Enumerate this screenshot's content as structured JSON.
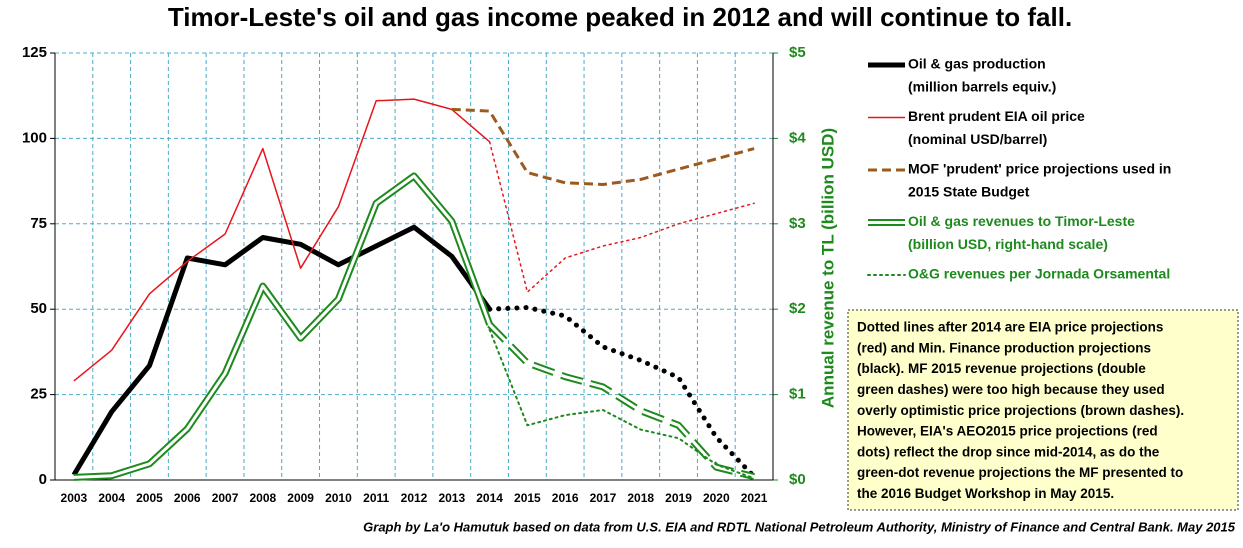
{
  "chart_data": {
    "type": "line",
    "title": "Timor-Leste's oil and gas income peaked in 2012 and will continue to fall.",
    "y2_label": "Annual revenue to TL (billion USD)",
    "source": "Graph by La'o Hamutuk based on data from U.S. EIA and RDTL National Petroleum Authority, Ministry of Finance and Central Bank.  May 2015",
    "categories": [
      "2003",
      "2004",
      "2005",
      "2006",
      "2007",
      "2008",
      "2009",
      "2010",
      "2011",
      "2012",
      "2013",
      "2014",
      "2015",
      "2016",
      "2017",
      "2018",
      "2019",
      "2020",
      "2021"
    ],
    "ylim": [
      0,
      125
    ],
    "yticks": [
      0,
      25,
      50,
      75,
      100,
      125
    ],
    "y2lim": [
      0,
      5
    ],
    "y2ticks": [
      {
        "value": 0,
        "label": "$0"
      },
      {
        "value": 1,
        "label": "$1"
      },
      {
        "value": 2,
        "label": "$2"
      },
      {
        "value": 3,
        "label": "$3"
      },
      {
        "value": 4,
        "label": "$4"
      },
      {
        "value": 5,
        "label": "$5"
      }
    ],
    "grid": true,
    "legend": "right",
    "series": [
      {
        "name": "Oil & gas production",
        "note": "(million barrels equiv.)",
        "color": "#000000",
        "style": "solid",
        "projection_style": "dotted",
        "projection_start": "2014",
        "values": [
          1.5,
          20,
          33.5,
          65,
          63,
          71,
          69,
          63,
          68.5,
          74,
          65.5,
          50,
          50.5,
          48,
          39,
          35,
          30,
          12.5,
          1
        ]
      },
      {
        "name": "Brent prudent EIA oil price",
        "note": "(nominal USD/barrel)",
        "color": "#e8151b",
        "style": "solid",
        "projection_style": "dotted",
        "projection_start": "2014",
        "values": [
          29,
          38,
          54.5,
          64,
          72,
          97,
          62,
          80,
          111,
          111.5,
          108.5,
          99,
          55,
          65,
          68.5,
          71,
          75,
          78,
          81
        ]
      },
      {
        "name": "MOF 'prudent' price projections used in",
        "note": "2015 State Budget",
        "color": "#9c5a1e",
        "style": "dashed",
        "values": [
          null,
          null,
          null,
          null,
          null,
          null,
          null,
          null,
          null,
          null,
          108.5,
          108,
          90,
          87,
          86.5,
          88,
          91,
          94,
          97
        ]
      },
      {
        "name": "Oil & gas revenues to Timor-Leste",
        "note": "(billion USD, right-hand scale)",
        "color": "#1e8a1e",
        "style": "double",
        "projection_style": "double-dashed",
        "projection_start": "2014",
        "axis": "y2",
        "values": [
          0.03,
          0.05,
          0.19,
          0.6,
          1.25,
          2.27,
          1.66,
          2.12,
          3.24,
          3.56,
          3.03,
          1.82,
          1.37,
          1.21,
          1.09,
          0.81,
          0.64,
          0.15,
          0.04
        ]
      },
      {
        "name": "O&G revenues per Jornada Orsamental",
        "color": "#1e8a1e",
        "style": "dotted",
        "axis": "y2",
        "values": [
          null,
          null,
          null,
          null,
          null,
          null,
          null,
          null,
          null,
          null,
          null,
          1.76,
          0.64,
          0.76,
          0.82,
          0.59,
          0.49,
          0.18,
          0.02
        ]
      }
    ],
    "annotation_lines": [
      "Dotted lines after 2014 are EIA price projections",
      "(red) and Min. Finance production  projections",
      "(black).  MF 2015 revenue projections (double",
      "green dashes) were too high because they used",
      "overly optimistic price projections (brown dashes).",
      "However, EIA's AEO2015 price projections (red",
      "dots) reflect the drop since mid-2014, as do the",
      "green-dot revenue projections the MF presented to",
      "the 2016 Budget Workshop in May 2015."
    ]
  }
}
